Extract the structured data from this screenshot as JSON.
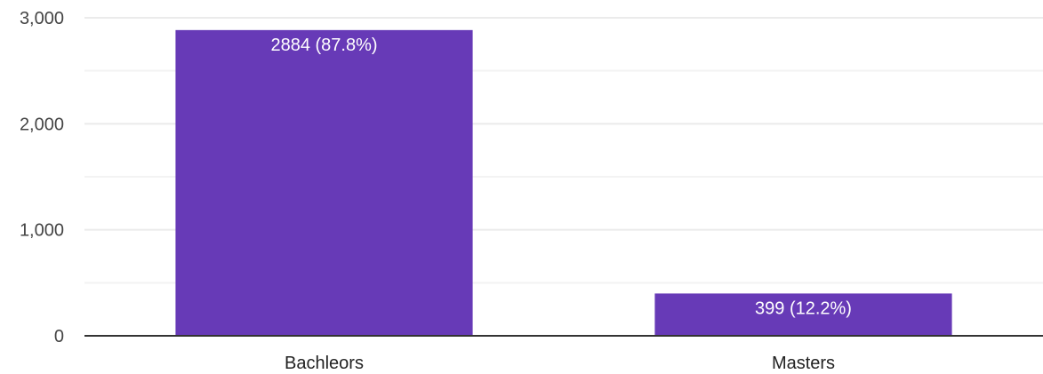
{
  "chart_data": {
    "type": "bar",
    "categories": [
      "Bachleors",
      "Masters"
    ],
    "values": [
      2884,
      399
    ],
    "data_labels": [
      "2884 (87.8%)",
      "399 (12.2%)"
    ],
    "y_ticks": [
      0,
      1000,
      2000,
      3000
    ],
    "y_tick_labels": [
      "0",
      "1,000",
      "2,000",
      "3,000"
    ],
    "ylim": [
      0,
      3000
    ],
    "grid": true,
    "minor_grid": true,
    "legend": "none",
    "colors": {
      "bar": "#673ab7",
      "grid": "#ebebeb",
      "axis": "#333333"
    }
  }
}
